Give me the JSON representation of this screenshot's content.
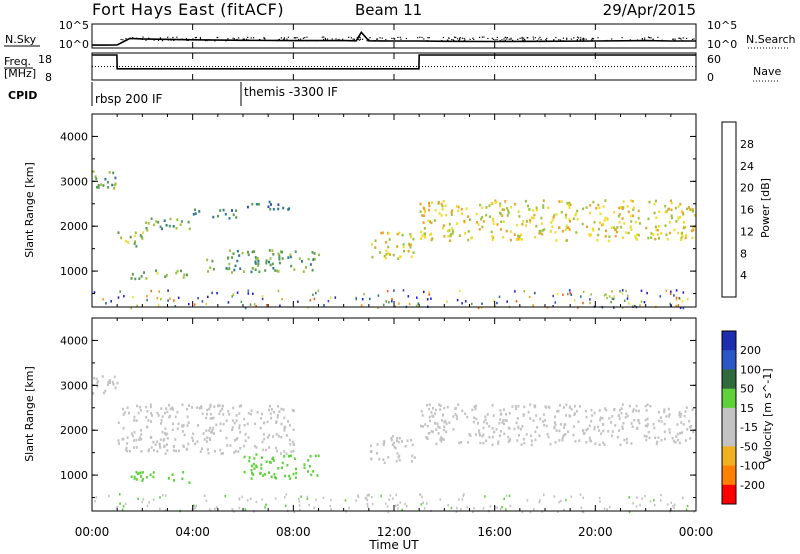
{
  "header": {
    "station": "Fort Hays East (fitACF)",
    "beam": "Beam 11",
    "date": "29/Apr/2015"
  },
  "colors": {
    "power_scale": [
      "#1f1fd6",
      "#2e4fb5",
      "#2f7a8a",
      "#5a9a55",
      "#9cc23a",
      "#f2dc2a",
      "#f0a020",
      "#ff6010",
      "#ff2000"
    ],
    "velocity_scale": [
      "#1c2db0",
      "#2b56c7",
      "#2f6a3c",
      "#5fd23a",
      "#c3c3c3",
      "#c3c3c3",
      "#f0b020",
      "#ff8000",
      "#ff4000",
      "#ff0000"
    ]
  },
  "chart_data": [
    {
      "type": "line",
      "panel": "noise",
      "left_label": "N.Sky",
      "right_label": "N.Search",
      "left_ticks": [
        "10^5",
        "10^0"
      ],
      "right_ticks": [
        "10^5",
        "10^0"
      ],
      "x": [
        0,
        0.5,
        1.0,
        1.5,
        2,
        4,
        6,
        8,
        10,
        10.5,
        10.7,
        11,
        12,
        13,
        14,
        16,
        18,
        20,
        22,
        23,
        24
      ],
      "series": [
        {
          "name": "",
          "values": [
            1.2,
            1.2,
            1.3,
            4.0,
            3.8,
            3.4,
            3.2,
            3.1,
            3.1,
            3.0,
            6.5,
            3.0,
            2.9,
            2.9,
            2.8,
            2.7,
            2.8,
            2.9,
            3.1,
            2.9,
            2.9
          ]
        }
      ],
      "ylim": [
        0,
        10
      ]
    },
    {
      "type": "line",
      "panel": "frequency",
      "left_label": "Freq.",
      "left_unit": "[MHz]",
      "right_label": "Nave",
      "left_ticks": [
        "18",
        "8"
      ],
      "right_ticks": [
        "60",
        "0"
      ],
      "x": [
        0,
        0.99,
        1.0,
        12.99,
        13.0,
        24
      ],
      "series": [
        {
          "name": "",
          "values": [
            18,
            18,
            12,
            12,
            18,
            18
          ]
        }
      ],
      "nave": 30,
      "ylim": [
        8,
        18
      ]
    },
    {
      "type": "text",
      "panel": "cpid",
      "label": "CPID",
      "segments": [
        {
          "start": 0,
          "text": "rbsp 200 IF"
        },
        {
          "start": 6,
          "text": "themis -3300 IF"
        }
      ]
    },
    {
      "type": "heatmap",
      "panel": "power",
      "ylabel": "Slant Range [km]",
      "colorbar_label": "Power [dB]",
      "colorbar_ticks": [
        4,
        8,
        12,
        16,
        20,
        24,
        28
      ],
      "clim": [
        0,
        30
      ],
      "ylim": [
        200,
        4500
      ],
      "yticks": [
        1000,
        2000,
        3000,
        4000
      ],
      "features": [
        {
          "t": [
            0,
            1
          ],
          "r": [
            2800,
            3300
          ],
          "level": 12
        },
        {
          "t": [
            1,
            2
          ],
          "r": [
            1500,
            1900
          ],
          "level": 14
        },
        {
          "t": [
            2,
            4
          ],
          "r": [
            1900,
            2200
          ],
          "level": 12
        },
        {
          "t": [
            4,
            6
          ],
          "r": [
            2200,
            2400
          ],
          "level": 10
        },
        {
          "t": [
            6,
            8
          ],
          "r": [
            2400,
            2600
          ],
          "level": 8
        },
        {
          "t": [
            1.5,
            4
          ],
          "r": [
            850,
            1050
          ],
          "level": 14
        },
        {
          "t": [
            4.5,
            9
          ],
          "r": [
            1000,
            1500
          ],
          "level": 12
        },
        {
          "t": [
            11,
            12.8
          ],
          "r": [
            1300,
            1900
          ],
          "level": 18
        },
        {
          "t": [
            13,
            24
          ],
          "r": [
            1700,
            2600
          ],
          "level": 18
        }
      ]
    },
    {
      "type": "heatmap",
      "panel": "velocity",
      "ylabel": "Slant Range [km]",
      "colorbar_label": "Velocity [m s^-1]",
      "colorbar_ticks": [
        200,
        100,
        50,
        15,
        -15,
        -50,
        -100,
        -200
      ],
      "clim": [
        -250,
        250
      ],
      "ylim": [
        200,
        4500
      ],
      "yticks": [
        1000,
        2000,
        3000,
        4000
      ],
      "features": [
        {
          "t": [
            0,
            1
          ],
          "r": [
            2800,
            3300
          ],
          "level": 0
        },
        {
          "t": [
            1,
            8
          ],
          "r": [
            1500,
            2600
          ],
          "level": 0
        },
        {
          "t": [
            1.5,
            4
          ],
          "r": [
            850,
            1100
          ],
          "level": 40
        },
        {
          "t": [
            6,
            9
          ],
          "r": [
            950,
            1500
          ],
          "level": 40
        },
        {
          "t": [
            11,
            12.8
          ],
          "r": [
            1300,
            1900
          ],
          "level": 0
        },
        {
          "t": [
            13,
            24
          ],
          "r": [
            1700,
            2600
          ],
          "level": 0
        }
      ]
    }
  ],
  "x_axis": {
    "label": "Time UT",
    "ticks": [
      "00:00",
      "04:00",
      "08:00",
      "12:00",
      "16:00",
      "20:00",
      "00:00"
    ],
    "range_hours": [
      0,
      24
    ]
  }
}
